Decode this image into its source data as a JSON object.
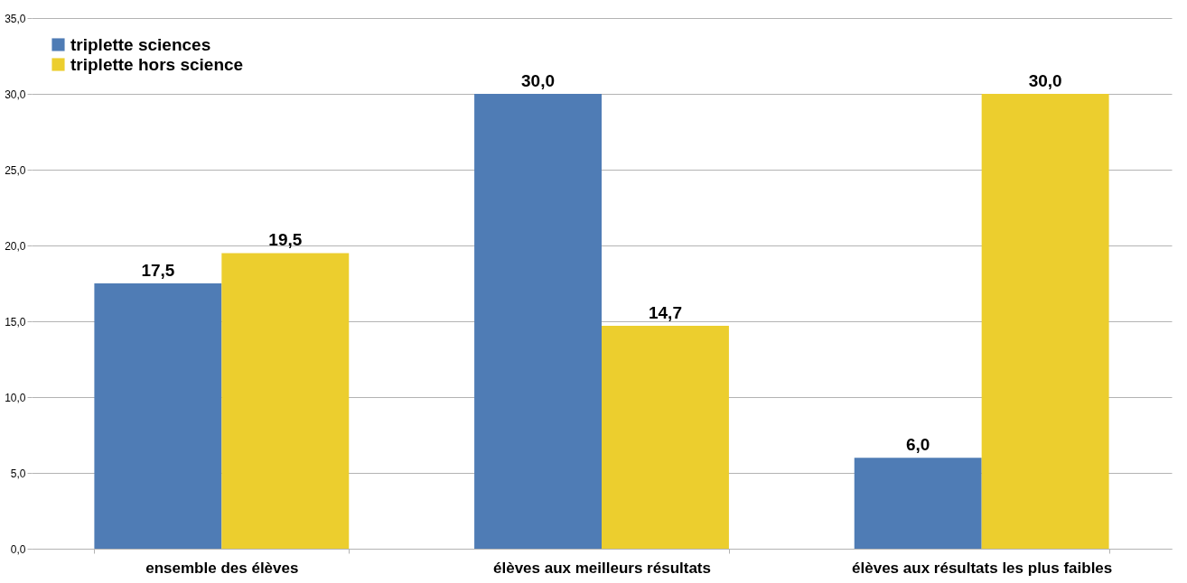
{
  "chart_data": {
    "type": "bar",
    "categories": [
      "ensemble des élèves",
      "élèves aux meilleurs résultats",
      "élèves aux résultats les plus faibles"
    ],
    "series": [
      {
        "name": "triplette sciences",
        "color": "#4f7cb5",
        "values": [
          17.5,
          30.0,
          6.0
        ],
        "value_labels": [
          "17,5",
          "30,0",
          "6,0"
        ]
      },
      {
        "name": "triplette hors science",
        "color": "#ecce2e",
        "values": [
          19.5,
          14.7,
          30.0
        ],
        "value_labels": [
          "19,5",
          "14,7",
          "30,0"
        ]
      }
    ],
    "ylim": [
      0,
      35
    ],
    "yticks": [
      {
        "value": 0,
        "label": "0,0"
      },
      {
        "value": 5,
        "label": "5,0"
      },
      {
        "value": 10,
        "label": "10,0"
      },
      {
        "value": 15,
        "label": "15,0"
      },
      {
        "value": 20,
        "label": "20,0"
      },
      {
        "value": 25,
        "label": "25,0"
      },
      {
        "value": 30,
        "label": "30,0"
      },
      {
        "value": 35,
        "label": "35,0"
      }
    ],
    "grid": "y",
    "legend": "top left"
  }
}
